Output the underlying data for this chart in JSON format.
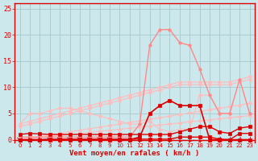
{
  "x": [
    0,
    1,
    2,
    3,
    4,
    5,
    6,
    7,
    8,
    9,
    10,
    11,
    12,
    13,
    14,
    15,
    16,
    17,
    18,
    19,
    20,
    21,
    22,
    23
  ],
  "bg_color": "#cce8ec",
  "grid_color": "#aacdd2",
  "line_dark_red": "#dd0000",
  "line_pink": "#ff8888",
  "line_light_pink": "#ffbbbb",
  "xlabel": "Vent moyen/en rafales ( km/h )",
  "ylabel_ticks": [
    0,
    5,
    10,
    15,
    20,
    25
  ],
  "xlim": [
    -0.5,
    23.5
  ],
  "ylim": [
    -0.5,
    26
  ],
  "fan_line1": [
    3.0,
    5.0,
    5.0,
    5.5,
    6.0,
    6.0,
    5.5,
    5.0,
    4.5,
    4.0,
    3.5,
    3.0,
    3.0,
    3.5,
    2.0,
    1.5,
    2.0,
    2.0,
    8.5,
    8.5,
    5.0,
    5.0,
    11.5,
    5.0
  ],
  "fan_line2": [
    0.5,
    0.5,
    0.5,
    1.0,
    1.0,
    1.0,
    0.8,
    0.8,
    0.5,
    0.5,
    0.3,
    0.3,
    1.5,
    3.0,
    1.5,
    1.5,
    2.0,
    2.0,
    2.0,
    2.0,
    1.5,
    1.0,
    2.0,
    2.0
  ],
  "lin_upper1": [
    3.0,
    3.5,
    4.0,
    4.5,
    5.0,
    5.5,
    6.0,
    6.5,
    7.0,
    7.5,
    8.0,
    8.5,
    9.0,
    9.5,
    10.0,
    10.5,
    11.0,
    11.0,
    11.0,
    11.0,
    11.0,
    11.0,
    11.5,
    12.0
  ],
  "lin_upper2": [
    2.5,
    3.0,
    3.5,
    4.0,
    4.5,
    5.0,
    5.5,
    6.0,
    6.5,
    7.0,
    7.5,
    8.0,
    8.5,
    9.0,
    9.5,
    10.0,
    10.5,
    10.5,
    10.5,
    10.5,
    10.5,
    10.5,
    11.0,
    11.5
  ],
  "lin_lower1": [
    0.0,
    0.3,
    0.6,
    0.9,
    1.2,
    1.5,
    1.8,
    2.1,
    2.4,
    2.7,
    3.0,
    3.3,
    3.6,
    3.9,
    4.2,
    4.5,
    4.8,
    5.1,
    5.4,
    5.7,
    6.0,
    6.3,
    6.6,
    7.0
  ],
  "lin_lower2": [
    0.0,
    0.2,
    0.4,
    0.6,
    0.8,
    1.0,
    1.2,
    1.4,
    1.6,
    1.8,
    2.0,
    2.2,
    2.4,
    2.6,
    2.8,
    3.0,
    3.2,
    3.4,
    3.6,
    3.8,
    4.0,
    4.2,
    4.4,
    4.6
  ],
  "peaked": [
    0.5,
    0.5,
    0.5,
    0.5,
    0.5,
    0.5,
    0.5,
    0.5,
    0.5,
    0.5,
    0.5,
    0.5,
    3.0,
    18.0,
    21.0,
    21.0,
    18.5,
    18.0,
    13.5,
    8.5,
    5.0,
    5.0,
    11.5,
    5.0
  ],
  "bell": [
    0.0,
    0.0,
    0.0,
    0.0,
    0.0,
    0.0,
    0.0,
    0.0,
    0.0,
    0.0,
    0.0,
    0.0,
    0.5,
    5.0,
    6.5,
    7.5,
    6.5,
    6.5,
    6.5,
    0.0,
    0.0,
    0.0,
    0.0,
    0.0
  ],
  "flat1": [
    1.0,
    1.2,
    1.1,
    1.0,
    1.0,
    1.0,
    1.0,
    1.0,
    1.0,
    1.0,
    1.0,
    1.0,
    1.0,
    1.0,
    1.0,
    1.0,
    1.5,
    2.0,
    2.5,
    2.5,
    1.5,
    1.2,
    2.2,
    2.5
  ],
  "flat2": [
    0.0,
    0.0,
    0.0,
    0.1,
    0.1,
    0.1,
    0.1,
    0.1,
    0.1,
    0.1,
    0.1,
    0.1,
    0.1,
    0.1,
    0.1,
    0.1,
    0.5,
    0.5,
    0.5,
    0.5,
    0.1,
    0.0,
    1.2,
    1.2
  ],
  "arrows_x": [
    0,
    1,
    2,
    3,
    4,
    5,
    6,
    7,
    8,
    9,
    10,
    11,
    12,
    13,
    14,
    15,
    16,
    17,
    18,
    19,
    20,
    21,
    22,
    23
  ],
  "arrows_dir": [
    0,
    45,
    45,
    0,
    0,
    0,
    0,
    0,
    0,
    0,
    315,
    315,
    315,
    315,
    315,
    315,
    315,
    315,
    315,
    315,
    315,
    315,
    315,
    315
  ]
}
